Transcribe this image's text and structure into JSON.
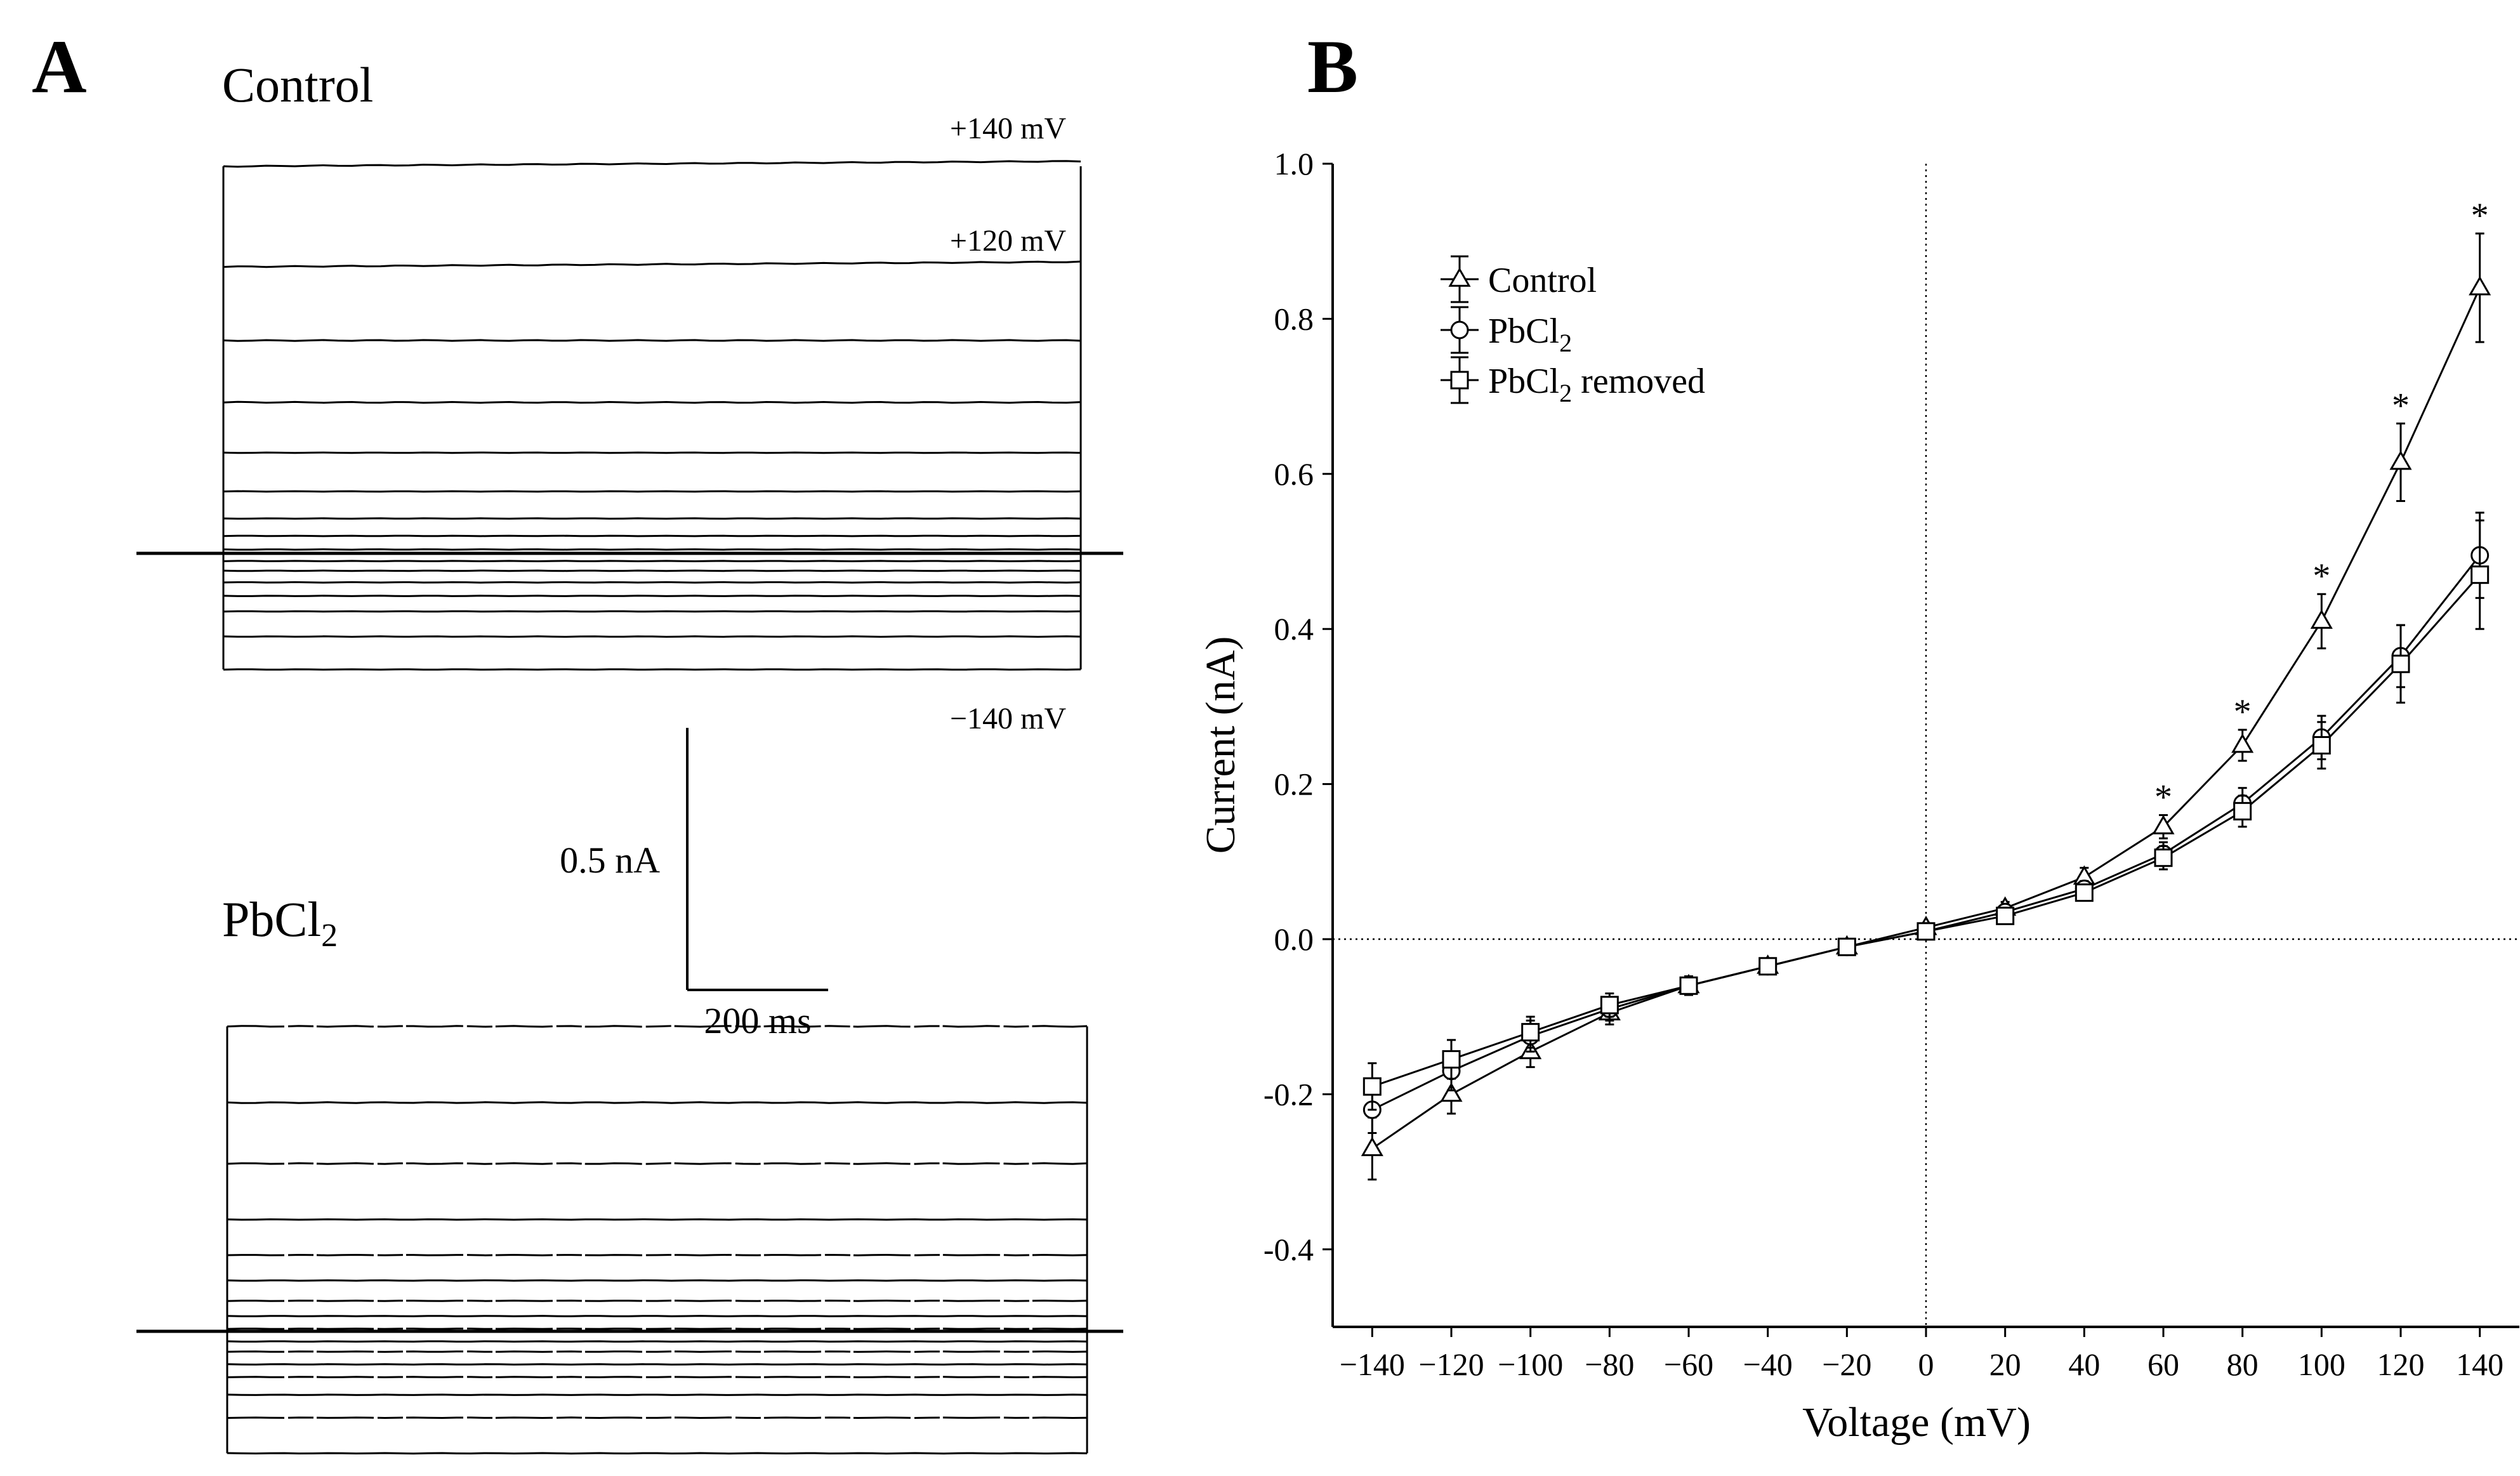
{
  "panels": {
    "a": {
      "letter": "A",
      "control_title": "Control",
      "pb_title_main": "PbCl",
      "pb_title_sub": "2",
      "trace_labels": {
        "top": "+140 mV",
        "second": "+120 mV",
        "bottom": "−140 mV"
      },
      "scale_bar": {
        "current": "0.5 nA",
        "time": "200 ms"
      }
    },
    "b": {
      "letter": "B"
    }
  },
  "legend": {
    "control": "Control",
    "pb_main": "PbCl",
    "pb_sub": "2",
    "removed_main": "PbCl",
    "removed_sub": "2",
    "removed_suffix": " removed"
  },
  "chart_data": {
    "type": "line",
    "title": "",
    "xlabel": "Voltage (mV)",
    "ylabel": "Current (nA)",
    "xlim": [
      -150,
      150
    ],
    "ylim": [
      -0.5,
      1.0
    ],
    "x_ticks": [
      -140,
      -120,
      -100,
      -80,
      -60,
      -40,
      -20,
      0,
      20,
      40,
      60,
      80,
      100,
      120,
      140
    ],
    "x_tick_labels": [
      "−140",
      "−120",
      "−100",
      "−80",
      "−60",
      "−40",
      "−20",
      "0",
      "20",
      "40",
      "60",
      "80",
      "100",
      "120",
      "140"
    ],
    "y_ticks": [
      -0.4,
      -0.2,
      0.0,
      0.2,
      0.4,
      0.6,
      0.8,
      1.0
    ],
    "y_tick_labels": [
      "-0.4",
      "-0.2",
      "0.0",
      "0.2",
      "0.4",
      "0.6",
      "0.8",
      "1.0"
    ],
    "reference_lines": {
      "x": 0,
      "y": 0,
      "style": "dotted"
    },
    "legend_position": "top-left",
    "x": [
      -140,
      -120,
      -100,
      -80,
      -60,
      -40,
      -20,
      0,
      20,
      40,
      60,
      80,
      100,
      120,
      140
    ],
    "series": [
      {
        "name": "Control",
        "marker": "triangle",
        "values": [
          -0.27,
          -0.2,
          -0.145,
          -0.095,
          -0.06,
          -0.035,
          -0.01,
          0.015,
          0.04,
          0.08,
          0.145,
          0.25,
          0.41,
          0.615,
          0.84
        ],
        "errors": [
          0.04,
          0.025,
          0.02,
          0.015,
          0.012,
          0.01,
          0.005,
          0.005,
          0.008,
          0.012,
          0.015,
          0.02,
          0.035,
          0.05,
          0.07
        ]
      },
      {
        "name": "PbCl2",
        "marker": "circle",
        "values": [
          -0.22,
          -0.17,
          -0.125,
          -0.09,
          -0.06,
          -0.035,
          -0.01,
          0.01,
          0.035,
          0.065,
          0.11,
          0.175,
          0.26,
          0.365,
          0.495
        ],
        "errors": [
          0.03,
          0.025,
          0.02,
          0.015,
          0.012,
          0.01,
          0.005,
          0.005,
          0.008,
          0.01,
          0.015,
          0.02,
          0.028,
          0.04,
          0.055
        ]
      },
      {
        "name": "PbCl2 removed",
        "marker": "square",
        "values": [
          -0.19,
          -0.155,
          -0.12,
          -0.085,
          -0.06,
          -0.035,
          -0.01,
          0.01,
          0.03,
          0.06,
          0.105,
          0.165,
          0.25,
          0.355,
          0.47
        ],
        "errors": [
          0.03,
          0.025,
          0.02,
          0.015,
          0.012,
          0.01,
          0.005,
          0.005,
          0.008,
          0.01,
          0.015,
          0.02,
          0.03,
          0.05,
          0.07
        ]
      }
    ],
    "significance": {
      "marker": "*",
      "x": [
        60,
        80,
        100,
        120,
        140
      ]
    }
  },
  "traces": {
    "control_rel_levels": [
      1.0,
      0.74,
      0.55,
      0.39,
      0.26,
      0.16,
      0.09,
      0.045,
      0.01,
      -0.02,
      -0.045,
      -0.075,
      -0.11,
      -0.15,
      -0.215,
      -0.3
    ],
    "pb_rel_levels": [
      0.6,
      0.45,
      0.33,
      0.22,
      0.15,
      0.1,
      0.06,
      0.03,
      0.005,
      -0.02,
      -0.04,
      -0.065,
      -0.09,
      -0.125,
      -0.17,
      -0.24
    ]
  }
}
